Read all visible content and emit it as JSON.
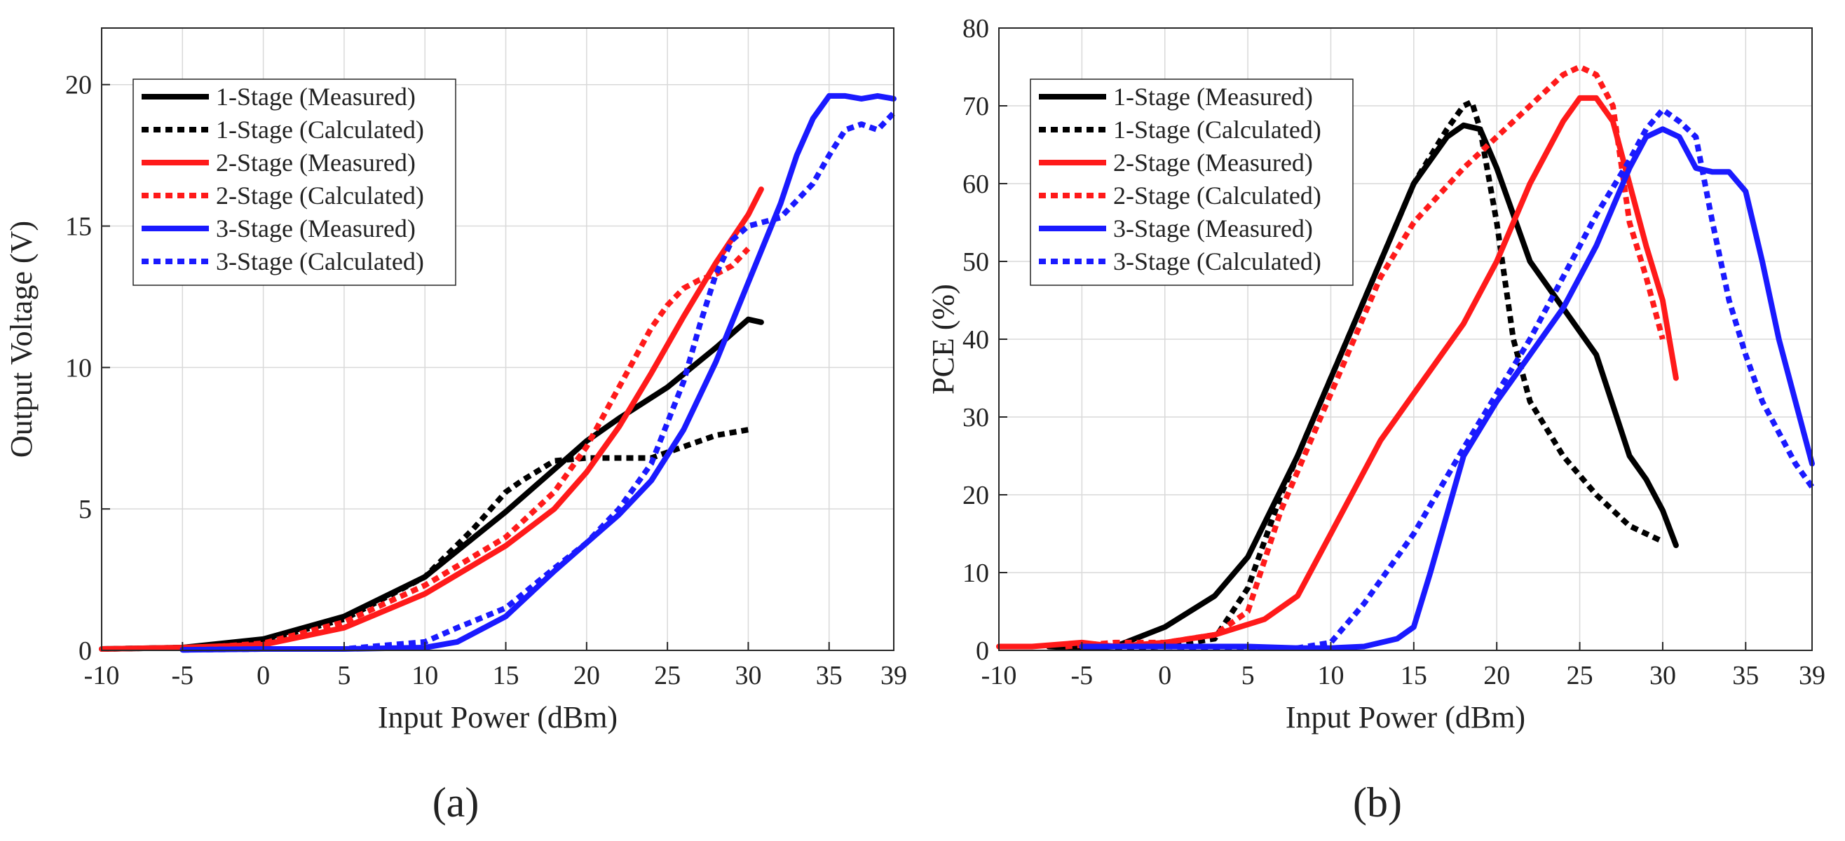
{
  "colors": {
    "stage1": "#000000",
    "stage2": "#ff1a1a",
    "stage3": "#1a1aff",
    "grid": "#d9d9d9"
  },
  "legend_labels": [
    "1-Stage (Measured)",
    "1-Stage (Calculated)",
    "2-Stage (Measured)",
    "2-Stage (Calculated)",
    "3-Stage (Measured)",
    "3-Stage (Calculated)"
  ],
  "chart_data": [
    {
      "type": "line",
      "panel_label": "(a)",
      "xlabel": "Input Power (dBm)",
      "ylabel": "Output Voltage (V)",
      "xlim": [
        -10,
        39
      ],
      "ylim": [
        0,
        22
      ],
      "xticks": [
        -10,
        -5,
        0,
        5,
        10,
        15,
        20,
        25,
        30,
        35,
        39
      ],
      "yticks": [
        0,
        5,
        10,
        15,
        20
      ],
      "grid": true,
      "legend_position": "top-left",
      "series": [
        {
          "name": "1-Stage (Measured)",
          "style": "solid",
          "color": "#000000",
          "x": [
            -10,
            -5,
            0,
            5,
            10,
            15,
            18,
            20,
            22,
            25,
            28,
            30,
            30.8
          ],
          "y": [
            0.05,
            0.1,
            0.4,
            1.2,
            2.6,
            4.9,
            6.4,
            7.4,
            8.2,
            9.3,
            10.7,
            11.7,
            11.6
          ]
        },
        {
          "name": "1-Stage (Calculated)",
          "style": "dotted",
          "color": "#000000",
          "x": [
            -10,
            -5,
            0,
            5,
            10,
            13,
            15,
            16,
            18,
            20,
            22,
            24,
            26,
            28,
            30
          ],
          "y": [
            0.05,
            0.1,
            0.35,
            1.1,
            2.6,
            4.3,
            5.6,
            6.0,
            6.7,
            6.8,
            6.8,
            6.8,
            7.2,
            7.6,
            7.8
          ]
        },
        {
          "name": "2-Stage (Measured)",
          "style": "solid",
          "color": "#ff1a1a",
          "x": [
            -10,
            -5,
            0,
            5,
            10,
            15,
            18,
            20,
            22,
            24,
            26,
            28,
            30,
            30.8
          ],
          "y": [
            0.05,
            0.1,
            0.2,
            0.8,
            2.0,
            3.7,
            5.0,
            6.3,
            7.9,
            9.8,
            11.8,
            13.7,
            15.4,
            16.3
          ]
        },
        {
          "name": "2-Stage (Calculated)",
          "style": "dotted",
          "color": "#ff1a1a",
          "x": [
            -5,
            0,
            5,
            10,
            15,
            18,
            20,
            22,
            24,
            25,
            26,
            27,
            28,
            29,
            30
          ],
          "y": [
            0.05,
            0.25,
            1.0,
            2.3,
            4.0,
            5.6,
            7.2,
            9.3,
            11.4,
            12.2,
            12.8,
            13.1,
            13.3,
            13.6,
            14.2
          ]
        },
        {
          "name": "3-Stage (Measured)",
          "style": "solid",
          "color": "#1a1aff",
          "x": [
            -5,
            0,
            5,
            10,
            12,
            15,
            18,
            20,
            22,
            24,
            26,
            28,
            30,
            32,
            33,
            34,
            35,
            36,
            37,
            38,
            39
          ],
          "y": [
            0.02,
            0.05,
            0.05,
            0.1,
            0.3,
            1.2,
            2.8,
            3.8,
            4.8,
            6.0,
            7.8,
            10.2,
            13.0,
            15.8,
            17.5,
            18.8,
            19.6,
            19.6,
            19.5,
            19.6,
            19.5
          ]
        },
        {
          "name": "3-Stage (Calculated)",
          "style": "dotted",
          "color": "#1a1aff",
          "x": [
            -5,
            0,
            5,
            10,
            12,
            15,
            18,
            20,
            22,
            24,
            26,
            27,
            28,
            29,
            30,
            32,
            34,
            35,
            36,
            37,
            38,
            39
          ],
          "y": [
            0.02,
            0.05,
            0.05,
            0.3,
            0.8,
            1.5,
            2.9,
            3.8,
            5.0,
            6.6,
            9.5,
            11.5,
            13.3,
            14.5,
            15.0,
            15.3,
            16.5,
            17.5,
            18.4,
            18.6,
            18.4,
            19.0
          ]
        }
      ]
    },
    {
      "type": "line",
      "panel_label": "(b)",
      "xlabel": "Input Power (dBm)",
      "ylabel": "PCE (%)",
      "xlim": [
        -10,
        39
      ],
      "ylim": [
        0,
        80
      ],
      "xticks": [
        -10,
        -5,
        0,
        5,
        10,
        15,
        20,
        25,
        30,
        35,
        39
      ],
      "yticks": [
        0,
        10,
        20,
        30,
        40,
        50,
        60,
        70,
        80
      ],
      "grid": true,
      "legend_position": "top-left",
      "series": [
        {
          "name": "1-Stage (Measured)",
          "style": "solid",
          "color": "#000000",
          "x": [
            -7,
            -5,
            -3,
            0,
            3,
            5,
            8,
            10,
            13,
            15,
            17,
            18,
            19,
            20,
            22,
            24,
            26,
            28,
            29,
            30,
            30.8
          ],
          "y": [
            0.5,
            0.3,
            0.5,
            3,
            7,
            12,
            25,
            35,
            50,
            60,
            66,
            67.5,
            67,
            62,
            50,
            44,
            38,
            25,
            22,
            18,
            13.5
          ]
        },
        {
          "name": "1-Stage (Calculated)",
          "style": "dotted",
          "color": "#000000",
          "x": [
            -3,
            0,
            3,
            5,
            7,
            10,
            13,
            15,
            17,
            18,
            18.5,
            19,
            20,
            21,
            22,
            24,
            26,
            28,
            30
          ],
          "y": [
            0.3,
            0.5,
            1.5,
            8,
            20,
            35,
            50,
            60,
            67,
            70,
            70.5,
            67,
            55,
            40,
            32,
            25,
            20,
            16,
            14
          ]
        },
        {
          "name": "2-Stage (Measured)",
          "style": "solid",
          "color": "#ff1a1a",
          "x": [
            -10,
            -8,
            -5,
            -3,
            0,
            3,
            6,
            8,
            10,
            13,
            15,
            18,
            20,
            22,
            24,
            25,
            26,
            27,
            28,
            29,
            30,
            30.8
          ],
          "y": [
            0.5,
            0.5,
            1,
            0.5,
            1,
            2,
            4,
            7,
            15,
            27,
            33,
            42,
            50,
            60,
            68,
            71,
            71,
            68,
            60,
            52,
            45,
            35
          ]
        },
        {
          "name": "2-Stage (Calculated)",
          "style": "dotted",
          "color": "#ff1a1a",
          "x": [
            -6,
            -3,
            0,
            3,
            5,
            7,
            10,
            13,
            15,
            18,
            20,
            22,
            24,
            25,
            26,
            27,
            28,
            29,
            30
          ],
          "y": [
            0.5,
            1,
            1,
            2,
            5,
            18,
            33,
            48,
            55,
            62,
            66,
            70,
            74,
            75,
            74,
            70,
            55,
            48,
            40
          ]
        },
        {
          "name": "3-Stage (Measured)",
          "style": "solid",
          "color": "#1a1aff",
          "x": [
            -5,
            0,
            5,
            8,
            10,
            12,
            14,
            15,
            16,
            18,
            20,
            22,
            24,
            26,
            28,
            29,
            30,
            31,
            32,
            33,
            34,
            35,
            36,
            37,
            38,
            39
          ],
          "y": [
            0.5,
            0.5,
            0.5,
            0.3,
            0.3,
            0.5,
            1.5,
            3,
            10,
            25,
            32,
            38,
            44,
            52,
            62,
            66,
            67,
            66,
            62,
            61.5,
            61.5,
            59,
            50,
            40,
            32,
            24
          ]
        },
        {
          "name": "3-Stage (Calculated)",
          "style": "dotted",
          "color": "#1a1aff",
          "x": [
            -5,
            0,
            5,
            8,
            10,
            12,
            15,
            18,
            20,
            22,
            24,
            26,
            28,
            29,
            30,
            31,
            32,
            33,
            34,
            35,
            36,
            37,
            38,
            39
          ],
          "y": [
            0.5,
            0.5,
            0.3,
            0.3,
            1,
            6,
            15,
            26,
            33,
            40,
            48,
            56,
            63,
            67,
            69.5,
            68,
            66,
            55,
            45,
            38,
            32,
            28,
            24,
            21
          ]
        }
      ]
    }
  ]
}
